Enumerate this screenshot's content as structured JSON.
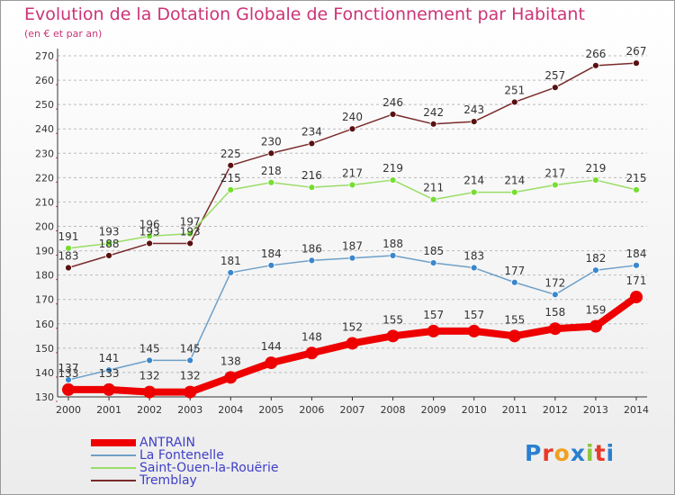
{
  "title": "Evolution de la Dotation Globale de Fonctionnement par Habitant",
  "subtitle": "(en € et par an)",
  "logo_text": "Proxiti",
  "colors": {
    "title": "#cc3377",
    "legend_text": "#4040c8",
    "axis": "#333333",
    "grid": "#bbbbbb",
    "tick_text": "#333333",
    "point_label": "#333333"
  },
  "chart_data": {
    "type": "line",
    "title": "Evolution de la Dotation Globale de Fonctionnement par Habitant",
    "subtitle": "(en € et par an)",
    "xlabel": "",
    "ylabel": "",
    "categories": [
      "2000",
      "2001",
      "2002",
      "2003",
      "2004",
      "2005",
      "2006",
      "2007",
      "2008",
      "2009",
      "2010",
      "2011",
      "2012",
      "2013",
      "2014"
    ],
    "ylim": [
      130,
      270
    ],
    "yticks": [
      130,
      140,
      150,
      160,
      170,
      180,
      190,
      200,
      210,
      220,
      230,
      240,
      250,
      260,
      270
    ],
    "grid": "horizontal dashed",
    "legend_position": "bottom-left",
    "series": [
      {
        "name": "ANTRAIN",
        "color": "#ee0000",
        "marker_color": "#ee0000",
        "width": 8,
        "marker": 7,
        "values": [
          133,
          133,
          132,
          132,
          138,
          144,
          148,
          152,
          155,
          157,
          157,
          155,
          158,
          159,
          171
        ]
      },
      {
        "name": "La Fontenelle",
        "color": "#6ea0c8",
        "marker_color": "#3a87cc",
        "width": 1.5,
        "marker": 3.5,
        "values": [
          137,
          141,
          145,
          145,
          181,
          184,
          186,
          187,
          188,
          185,
          183,
          177,
          172,
          182,
          184
        ]
      },
      {
        "name": "Saint-Ouen-la-Rouërie",
        "color": "#99dd66",
        "marker_color": "#77dd33",
        "width": 1.5,
        "marker": 3.5,
        "values": [
          191,
          193,
          196,
          197,
          215,
          218,
          216,
          217,
          219,
          211,
          214,
          214,
          217,
          219,
          215
        ]
      },
      {
        "name": "Tremblay",
        "color": "#7a2a2a",
        "marker_color": "#5a1010",
        "width": 1.5,
        "marker": 3.5,
        "values": [
          183,
          188,
          193,
          193,
          225,
          230,
          234,
          240,
          246,
          242,
          243,
          251,
          257,
          266,
          267
        ]
      }
    ]
  }
}
